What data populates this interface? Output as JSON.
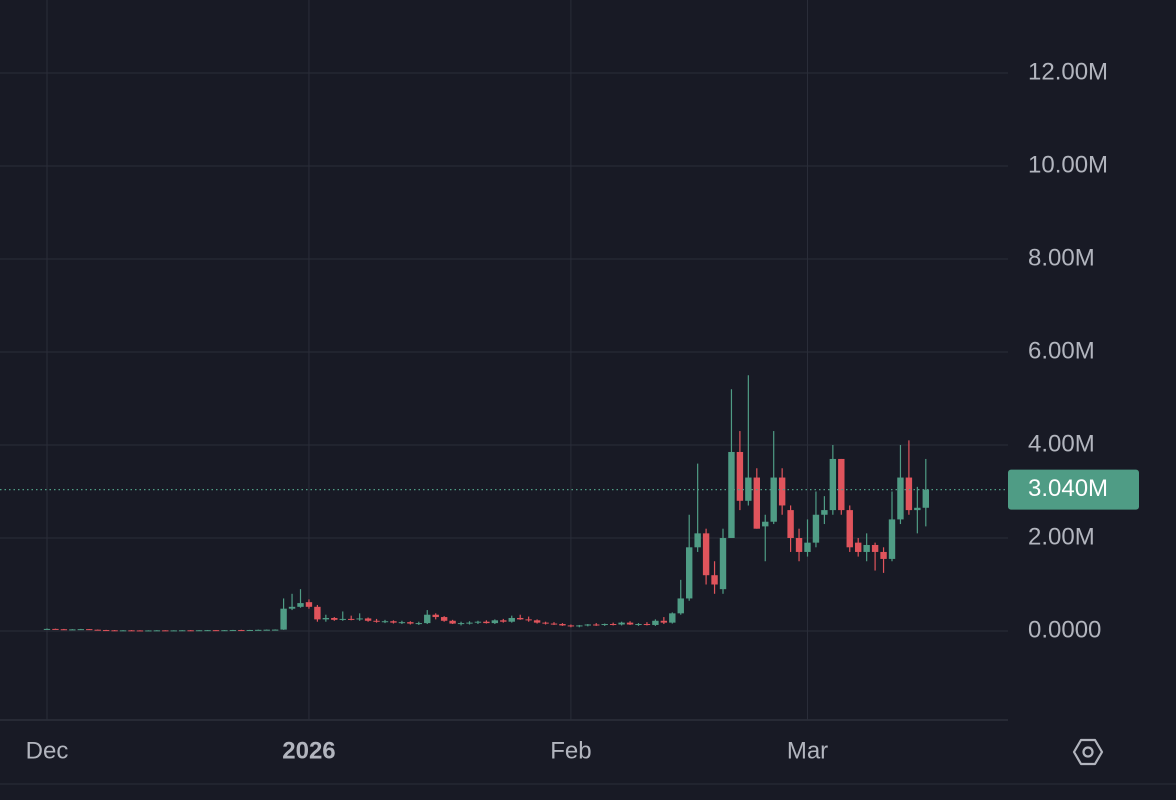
{
  "chart_data": {
    "type": "candlestick",
    "categories": [
      "Dec",
      null,
      null,
      null,
      null,
      null,
      null,
      null,
      null,
      null,
      null,
      null,
      null,
      null,
      null,
      null,
      null,
      null,
      null,
      null,
      null,
      null,
      null,
      null,
      null,
      null,
      null,
      null,
      null,
      null,
      null,
      "2026",
      null,
      null,
      null,
      null,
      null,
      null,
      null,
      null,
      null,
      null,
      null,
      null,
      null,
      null,
      null,
      null,
      null,
      null,
      null,
      null,
      null,
      null,
      null,
      null,
      null,
      null,
      null,
      null,
      null,
      null,
      "Feb",
      null,
      null,
      null,
      null,
      null,
      null,
      null,
      null,
      null,
      null,
      null,
      null,
      null,
      null,
      null,
      null,
      null,
      null,
      null,
      null,
      null,
      null,
      null,
      null,
      null,
      null,
      null,
      "Mar",
      null,
      null,
      null,
      null,
      null,
      null,
      null,
      null,
      null,
      null,
      null,
      null,
      null,
      null
    ],
    "open": [
      40000,
      45000,
      38000,
      32000,
      35000,
      40000,
      28000,
      20000,
      15000,
      12000,
      14000,
      12000,
      10000,
      12000,
      14000,
      11000,
      13000,
      15000,
      14000,
      16000,
      18000,
      15000,
      17000,
      20000,
      18000,
      22000,
      25000,
      28000,
      30000,
      480000,
      520000,
      620000,
      520000,
      250000,
      280000,
      240000,
      260000,
      250000,
      270000,
      220000,
      200000,
      210000,
      180000,
      190000,
      160000,
      170000,
      350000,
      300000,
      220000,
      160000,
      170000,
      180000,
      200000,
      170000,
      230000,
      200000,
      280000,
      250000,
      230000,
      180000,
      160000,
      150000,
      120000,
      100000,
      120000,
      140000,
      130000,
      150000,
      140000,
      180000,
      140000,
      150000,
      130000,
      220000,
      180000,
      380000,
      700000,
      1800000,
      2100000,
      1200000,
      900000,
      2000000,
      3850000,
      2800000,
      3300000,
      2250000,
      2350000,
      3300000,
      2600000,
      2000000,
      1700000,
      1900000,
      2500000,
      2600000,
      3700000,
      2600000,
      1900000,
      1700000,
      1850000,
      1700000,
      1550000,
      2400000,
      3300000,
      2600000,
      2650000
    ],
    "high": [
      55000,
      50000,
      45000,
      40000,
      45000,
      42000,
      32000,
      25000,
      20000,
      18000,
      20000,
      16000,
      15000,
      18000,
      16000,
      15000,
      18000,
      20000,
      18000,
      22000,
      22000,
      20000,
      24000,
      26000,
      24000,
      30000,
      32000,
      35000,
      700000,
      800000,
      900000,
      680000,
      560000,
      350000,
      300000,
      420000,
      330000,
      380000,
      290000,
      260000,
      240000,
      230000,
      220000,
      210000,
      200000,
      450000,
      380000,
      320000,
      240000,
      200000,
      210000,
      220000,
      230000,
      250000,
      260000,
      330000,
      350000,
      310000,
      250000,
      200000,
      190000,
      170000,
      140000,
      130000,
      150000,
      170000,
      160000,
      180000,
      200000,
      210000,
      170000,
      190000,
      250000,
      300000,
      400000,
      1100000,
      2500000,
      3600000,
      2200000,
      1500000,
      2200000,
      5200000,
      4300000,
      5500000,
      3500000,
      2500000,
      4300000,
      3500000,
      2700000,
      2200000,
      2400000,
      3000000,
      2900000,
      4000000,
      3700000,
      2700000,
      2000000,
      2100000,
      1900000,
      1800000,
      3000000,
      4000000,
      4100000,
      3100000,
      3700000
    ],
    "low": [
      35000,
      35000,
      30000,
      28000,
      30000,
      25000,
      18000,
      12000,
      10000,
      8000,
      10000,
      8000,
      8000,
      9000,
      9000,
      8000,
      10000,
      12000,
      10000,
      12000,
      14000,
      12000,
      14000,
      16000,
      15000,
      18000,
      20000,
      24000,
      25000,
      450000,
      500000,
      480000,
      200000,
      200000,
      220000,
      220000,
      230000,
      220000,
      200000,
      180000,
      170000,
      160000,
      150000,
      140000,
      130000,
      150000,
      250000,
      200000,
      150000,
      120000,
      140000,
      150000,
      160000,
      150000,
      180000,
      180000,
      240000,
      200000,
      160000,
      140000,
      130000,
      110000,
      80000,
      80000,
      100000,
      110000,
      110000,
      120000,
      120000,
      130000,
      110000,
      120000,
      110000,
      150000,
      160000,
      350000,
      650000,
      1700000,
      1000000,
      800000,
      800000,
      2000000,
      2600000,
      2700000,
      2200000,
      1500000,
      2300000,
      2500000,
      1700000,
      1500000,
      1600000,
      1800000,
      2300000,
      2500000,
      2500000,
      1700000,
      1600000,
      1500000,
      1300000,
      1250000,
      1500000,
      2300000,
      2500000,
      2100000,
      2250000
    ],
    "close": [
      45000,
      38000,
      32000,
      35000,
      40000,
      28000,
      20000,
      15000,
      12000,
      14000,
      12000,
      10000,
      12000,
      14000,
      11000,
      13000,
      15000,
      14000,
      16000,
      18000,
      15000,
      17000,
      20000,
      18000,
      22000,
      25000,
      28000,
      30000,
      480000,
      520000,
      600000,
      520000,
      250000,
      280000,
      240000,
      260000,
      250000,
      270000,
      220000,
      200000,
      210000,
      180000,
      190000,
      160000,
      170000,
      350000,
      300000,
      220000,
      160000,
      170000,
      180000,
      200000,
      170000,
      230000,
      200000,
      280000,
      250000,
      230000,
      180000,
      160000,
      150000,
      120000,
      100000,
      120000,
      140000,
      130000,
      150000,
      140000,
      180000,
      140000,
      150000,
      130000,
      220000,
      180000,
      380000,
      700000,
      1800000,
      2100000,
      1200000,
      1000000,
      2000000,
      3850000,
      2800000,
      3300000,
      2200000,
      2350000,
      3300000,
      2700000,
      2000000,
      1700000,
      1900000,
      2500000,
      2600000,
      3700000,
      2600000,
      1800000,
      1700000,
      1850000,
      1700000,
      1550000,
      2400000,
      3300000,
      2600000,
      2650000,
      3040000
    ],
    "up_color": "#4f9c85",
    "down_color": "#e0545c",
    "last_price": {
      "value": 3040000,
      "label": "3.040M"
    },
    "ylim": [
      -1914000,
      13570000
    ],
    "yticks": [
      {
        "value": 0,
        "label": "0.0000"
      },
      {
        "value": 2000000,
        "label": "2.00M"
      },
      {
        "value": 4000000,
        "label": "4.00M"
      },
      {
        "value": 6000000,
        "label": "6.00M"
      },
      {
        "value": 8000000,
        "label": "8.00M"
      },
      {
        "value": 10000000,
        "label": "10.00M"
      },
      {
        "value": 12000000,
        "label": "12.00M"
      }
    ],
    "grid": true
  }
}
